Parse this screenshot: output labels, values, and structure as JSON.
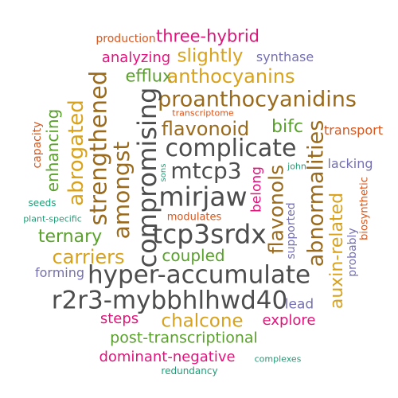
{
  "words": {
    "hyper_accumulate": "hyper-accumulate",
    "r2r3": "r2r3-mybbhlhwd40",
    "tcp3srdx": "tcp3srdx",
    "compromising": "compromising",
    "complicate": "complicate",
    "mirjaw": "mirjaw",
    "mtcp3": "mtcp3",
    "proanthocyanidins": "proanthocyanidins",
    "strengthened": "strengthened",
    "amongst": "amongst",
    "abnormalities": "abnormalities",
    "flavonols": "flavonols",
    "anthocyanins": "anthocyanins",
    "flavonoid": "flavonoid",
    "auxin_related": "auxin-related",
    "abrogated": "abrogated",
    "carriers": "carriers",
    "chalcone": "chalcone",
    "slightly": "slightly",
    "three_hybrid": "three-hybrid",
    "analyzing": "analyzing",
    "synthase": "synthase",
    "production": "production",
    "efflux": "efflux",
    "bifc": "bifc",
    "transport": "transport",
    "transcriptome": "transcriptome",
    "sons": "sons",
    "john": "john",
    "lacking": "lacking",
    "belong": "belong",
    "supported": "supported",
    "biosynthetic": "biosynthetic",
    "probably": "probably",
    "capacity": "capacity",
    "enhancing": "enhancing",
    "seeds": "seeds",
    "plant_specific": "plant-specific",
    "modulates": "modulates",
    "ternary": "ternary",
    "coupled": "coupled",
    "forming": "forming",
    "lead": "lead",
    "steps": "steps",
    "explore": "explore",
    "post_transcriptional": "post-transcriptional",
    "dominant_negative": "dominant-negative",
    "complexes": "complexes",
    "redundancy": "redundancy"
  }
}
